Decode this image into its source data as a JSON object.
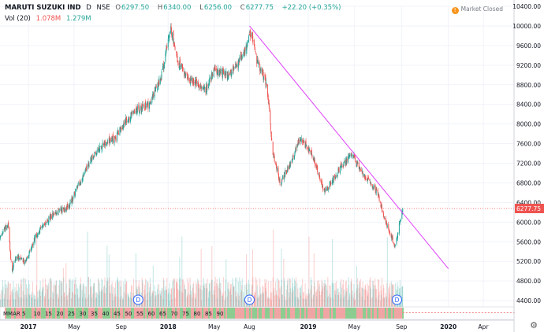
{
  "header": {
    "symbol": "MARUTI SUZUKI IND",
    "interval": "D",
    "exchange": "NSE",
    "open_label": "O",
    "open": "6297.50",
    "high_label": "H",
    "high": "6340.00",
    "low_label": "L",
    "low": "6256.00",
    "close_label": "C",
    "close": "6277.75",
    "change": "+22.20 (+0.35%)"
  },
  "volume_legend": {
    "label": "Vol (20)",
    "value_1": "1.078M",
    "value_2": "1.279M"
  },
  "market_status": "Market Closed",
  "ma_strip_label": "MMAR",
  "ma_strip_numbers": [
    "5",
    "10",
    "15",
    "20",
    "25",
    "30",
    "35",
    "40",
    "45",
    "50",
    "55",
    "60",
    "65",
    "70",
    "75",
    "80",
    "85",
    "90"
  ],
  "colors": {
    "up": "#26a69a",
    "down": "#ef5350",
    "trendline": "#e040fb",
    "grid": "#f0f3fa",
    "price_line": "#ef5350",
    "text": "#131722"
  },
  "chart_data": {
    "type": "candlestick",
    "title": "",
    "ylim": [
      4000,
      10400
    ],
    "y_ticks": [
      4400,
      4800,
      5200,
      5600,
      6000,
      6400,
      6800,
      7200,
      7600,
      8000,
      8400,
      8800,
      9200,
      9600,
      10000,
      10400
    ],
    "x_tick_labels": [
      "2017",
      "May",
      "Sep",
      "2018",
      "May",
      "Aug",
      "2019",
      "May",
      "Sep",
      "2020",
      "Apr"
    ],
    "x_tick_dates": [
      "2017-01-02",
      "2017-05-01",
      "2017-09-01",
      "2018-01-01",
      "2018-05-01",
      "2018-08-01",
      "2019-01-01",
      "2019-05-01",
      "2019-09-01",
      "2020-01-01",
      "2020-04-01"
    ],
    "x_range": [
      "2016-10-20",
      "2020-06-20"
    ],
    "last_price": 6277.75,
    "last_price_label": "6277.75",
    "close_series": [
      [
        "2016-10-20",
        5700
      ],
      [
        "2016-11-01",
        5850
      ],
      [
        "2016-11-10",
        5950
      ],
      [
        "2016-11-20",
        5000
      ],
      [
        "2016-12-01",
        5300
      ],
      [
        "2016-12-26",
        5200
      ],
      [
        "2017-01-20",
        5700
      ],
      [
        "2017-02-15",
        6000
      ],
      [
        "2017-03-15",
        6200
      ],
      [
        "2017-04-15",
        6300
      ],
      [
        "2017-05-15",
        6800
      ],
      [
        "2017-06-15",
        7300
      ],
      [
        "2017-07-15",
        7600
      ],
      [
        "2017-08-15",
        7700
      ],
      [
        "2017-09-15",
        8100
      ],
      [
        "2017-10-15",
        8300
      ],
      [
        "2017-11-15",
        8400
      ],
      [
        "2017-12-15",
        9000
      ],
      [
        "2018-01-01",
        9700
      ],
      [
        "2018-01-08",
        9950
      ],
      [
        "2018-01-25",
        9300
      ],
      [
        "2018-02-15",
        9000
      ],
      [
        "2018-03-15",
        8800
      ],
      [
        "2018-04-10",
        8700
      ],
      [
        "2018-05-01",
        9100
      ],
      [
        "2018-06-01",
        9000
      ],
      [
        "2018-07-01",
        9200
      ],
      [
        "2018-07-25",
        9600
      ],
      [
        "2018-08-05",
        9900
      ],
      [
        "2018-08-20",
        9300
      ],
      [
        "2018-09-15",
        8800
      ],
      [
        "2018-10-01",
        7400
      ],
      [
        "2018-10-20",
        6800
      ],
      [
        "2018-11-15",
        7200
      ],
      [
        "2018-12-10",
        7700
      ],
      [
        "2019-01-01",
        7500
      ],
      [
        "2019-01-20",
        7200
      ],
      [
        "2019-02-10",
        6600
      ],
      [
        "2019-03-01",
        6800
      ],
      [
        "2019-03-25",
        7100
      ],
      [
        "2019-04-25",
        7400
      ],
      [
        "2019-05-15",
        7100
      ],
      [
        "2019-06-10",
        6800
      ],
      [
        "2019-07-01",
        6600
      ],
      [
        "2019-07-20",
        6000
      ],
      [
        "2019-08-15",
        5500
      ],
      [
        "2019-08-25",
        5900
      ],
      [
        "2019-09-04",
        6277.75
      ]
    ],
    "volume_markers": [
      {
        "date": "2017-10-15",
        "label": "D"
      },
      {
        "date": "2018-08-01",
        "label": "D"
      },
      {
        "date": "2019-08-20",
        "label": "D"
      }
    ],
    "trendline": {
      "from": [
        "2018-08-01",
        10000
      ],
      "to": [
        "2020-01-01",
        5050
      ]
    }
  }
}
